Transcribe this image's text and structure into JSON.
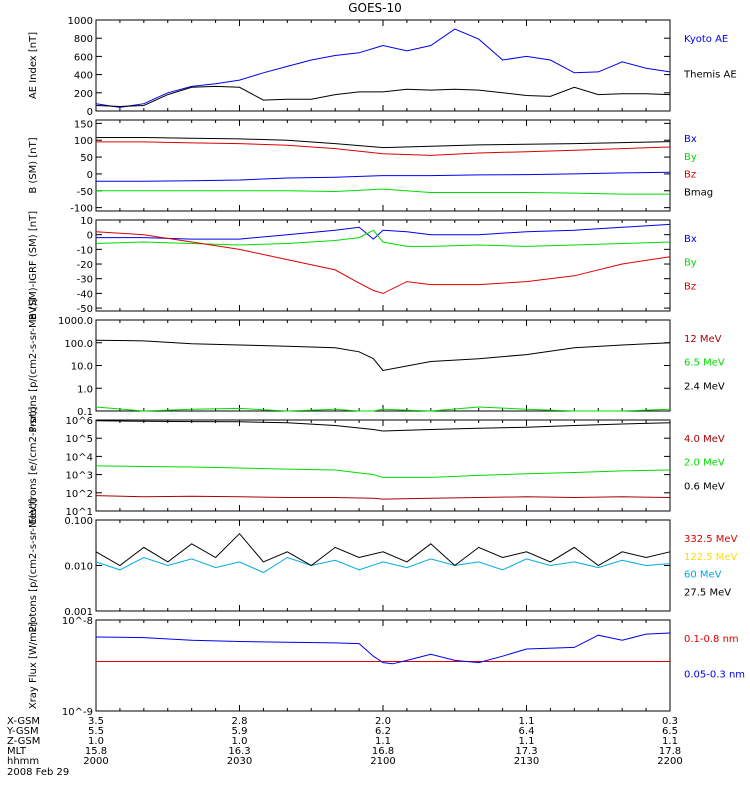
{
  "title": "GOES-10",
  "date_label": "2008 Feb 29",
  "ephemeris": {
    "row_labels": [
      "X-GSM",
      "Y-GSM",
      "Z-GSM",
      "MLT",
      "hhmm"
    ],
    "columns": [
      [
        "3.5",
        "5.5",
        "1.0",
        "15.8",
        "2000"
      ],
      [
        "2.8",
        "5.9",
        "1.0",
        "16.3",
        "2030"
      ],
      [
        "2.0",
        "6.2",
        "1.1",
        "16.8",
        "2100"
      ],
      [
        "1.1",
        "6.4",
        "1.1",
        "17.3",
        "2130"
      ],
      [
        "0.3",
        "6.5",
        "1.1",
        "17.8",
        "2200"
      ]
    ]
  },
  "colors": {
    "black": "#000000",
    "blue": "#0000ee",
    "green": "#00dd00",
    "red": "#dd0000",
    "darkred": "#aa0000",
    "yellow": "#ffdd00",
    "cyan": "#00aadd"
  },
  "chart_data": [
    {
      "type": "line",
      "id": "ae",
      "ylabel": "AE Index [nT]",
      "ylim": [
        0,
        1000
      ],
      "ticks": [
        "0",
        "200",
        "400",
        "600",
        "800",
        "1000"
      ],
      "x_minutes": [
        0,
        5,
        10,
        15,
        20,
        25,
        30,
        35,
        40,
        45,
        50,
        55,
        60,
        65,
        70,
        75,
        80,
        85,
        90,
        95,
        100,
        105,
        110,
        115,
        120
      ],
      "series": [
        {
          "name": "Kyoto AE",
          "color": "blue",
          "values": [
            80,
            40,
            80,
            200,
            270,
            300,
            340,
            420,
            490,
            560,
            610,
            640,
            720,
            660,
            720,
            900,
            790,
            560,
            600,
            560,
            420,
            430,
            540,
            470,
            430
          ]
        },
        {
          "name": "Themis AE",
          "color": "black",
          "values": [
            60,
            50,
            60,
            180,
            260,
            270,
            260,
            120,
            130,
            130,
            180,
            210,
            210,
            240,
            230,
            240,
            230,
            200,
            170,
            160,
            260,
            180,
            190,
            190,
            180
          ]
        }
      ]
    },
    {
      "type": "line",
      "id": "b",
      "ylabel": "B (SM) [nT]",
      "ylim": [
        -110,
        160
      ],
      "ticks": [
        "-100",
        "-50",
        "0",
        "50",
        "100",
        "150"
      ],
      "x_minutes": [
        0,
        10,
        20,
        30,
        40,
        50,
        60,
        70,
        80,
        90,
        100,
        110,
        120
      ],
      "series": [
        {
          "name": "Bx",
          "color": "blue",
          "values": [
            -22,
            -22,
            -20,
            -18,
            -12,
            -10,
            -5,
            -5,
            -3,
            -2,
            0,
            3,
            5
          ]
        },
        {
          "name": "By",
          "color": "green",
          "values": [
            -50,
            -50,
            -50,
            -50,
            -50,
            -52,
            -45,
            -55,
            -55,
            -55,
            -57,
            -60,
            -60
          ]
        },
        {
          "name": "Bz",
          "color": "red",
          "values": [
            95,
            95,
            92,
            90,
            85,
            75,
            60,
            55,
            62,
            66,
            70,
            75,
            80
          ]
        },
        {
          "name": "Bmag",
          "color": "black",
          "values": [
            108,
            108,
            106,
            104,
            100,
            90,
            78,
            82,
            86,
            88,
            90,
            93,
            96
          ]
        }
      ]
    },
    {
      "type": "line",
      "id": "bdiff",
      "ylabel": "B (SM)-IGRF (SM) [nT]",
      "ylim": [
        -52,
        10
      ],
      "ticks": [
        "-50",
        "-40",
        "-30",
        "-20",
        "-10",
        "0",
        "10"
      ],
      "x_minutes": [
        0,
        10,
        20,
        30,
        40,
        50,
        55,
        58,
        60,
        65,
        70,
        80,
        90,
        100,
        110,
        120
      ],
      "series": [
        {
          "name": "Bx",
          "color": "blue",
          "values": [
            -2,
            -2,
            -3,
            -3,
            0,
            3,
            5,
            -3,
            3,
            2,
            0,
            0,
            2,
            3,
            5,
            7
          ]
        },
        {
          "name": "By",
          "color": "green",
          "values": [
            -6,
            -5,
            -6,
            -7,
            -6,
            -4,
            -2,
            3,
            -5,
            -8,
            -8,
            -7,
            -8,
            -7,
            -6,
            -5
          ]
        },
        {
          "name": "Bz",
          "color": "red",
          "values": [
            2,
            0,
            -5,
            -10,
            -17,
            -24,
            -33,
            -38,
            -40,
            -32,
            -34,
            -34,
            -32,
            -28,
            -20,
            -15
          ]
        }
      ]
    },
    {
      "type": "line",
      "id": "protons1",
      "log": true,
      "ylabel": "Protons [p/(cm2-s-sr-MeV)]",
      "ylim_exp": [
        -1,
        3
      ],
      "ticks": [
        "0.1",
        "1.0",
        "10.0",
        "100.0",
        "1000.0"
      ],
      "x_minutes": [
        0,
        10,
        20,
        30,
        40,
        50,
        55,
        58,
        60,
        70,
        80,
        90,
        100,
        110,
        120
      ],
      "series": [
        {
          "name": "12 MeV",
          "color": "darkred",
          "values": [
            null,
            null,
            null,
            null,
            null,
            null,
            null,
            null,
            null,
            null,
            null,
            null,
            null,
            null,
            null
          ]
        },
        {
          "name": "6.5 MeV",
          "color": "green",
          "values": [
            0.15,
            0.1,
            0.12,
            0.13,
            0.1,
            0.12,
            0.1,
            0.1,
            0.12,
            0.1,
            0.15,
            0.12,
            0.1,
            0.1,
            0.12
          ]
        },
        {
          "name": "2.4 MeV",
          "color": "black",
          "values": [
            130,
            120,
            90,
            80,
            70,
            60,
            40,
            20,
            6,
            15,
            20,
            30,
            60,
            80,
            100
          ]
        }
      ]
    },
    {
      "type": "line",
      "id": "electrons",
      "log": true,
      "ylabel": "Electrons [e/(cm2-s-sr)]",
      "ylim_exp": [
        1,
        6
      ],
      "ticks": [
        "10^1",
        "10^2",
        "10^3",
        "10^4",
        "10^5",
        "10^6"
      ],
      "x_minutes": [
        0,
        10,
        20,
        30,
        40,
        50,
        58,
        60,
        70,
        80,
        90,
        100,
        110,
        120
      ],
      "series": [
        {
          "name": "4.0 MeV",
          "color": "darkred",
          "values": [
            70,
            60,
            65,
            60,
            55,
            55,
            50,
            45,
            50,
            55,
            60,
            55,
            60,
            55
          ]
        },
        {
          "name": "2.0 MeV",
          "color": "green",
          "values": [
            3000,
            2800,
            2600,
            2300,
            2000,
            1800,
            1000,
            700,
            700,
            900,
            1100,
            1300,
            1600,
            1800
          ]
        },
        {
          "name": "0.6 MeV",
          "color": "black",
          "values": [
            900000,
            850000,
            820000,
            800000,
            700000,
            500000,
            300000,
            250000,
            300000,
            350000,
            400000,
            500000,
            600000,
            700000
          ]
        }
      ]
    },
    {
      "type": "line",
      "id": "protons2",
      "log": true,
      "ylabel": "Protons [p/(cm2-s-sr-MeV)]",
      "ylim_exp": [
        -3,
        -1
      ],
      "ticks": [
        "0.001",
        "0.010",
        "0.100"
      ],
      "x_minutes": [
        0,
        5,
        10,
        15,
        20,
        25,
        30,
        35,
        40,
        45,
        50,
        55,
        60,
        65,
        70,
        75,
        80,
        85,
        90,
        95,
        100,
        105,
        110,
        115,
        120
      ],
      "series": [
        {
          "name": "332.5 MeV",
          "color": "red",
          "values": [
            null,
            null,
            null,
            null,
            null,
            null,
            null,
            null,
            null,
            null,
            null,
            null,
            null,
            null,
            null,
            null,
            null,
            null,
            null,
            null,
            null,
            null,
            null,
            null,
            null
          ]
        },
        {
          "name": "122.5 MeV",
          "color": "yellow",
          "values": [
            null,
            null,
            null,
            null,
            null,
            null,
            null,
            null,
            null,
            null,
            null,
            null,
            null,
            null,
            null,
            null,
            null,
            null,
            null,
            null,
            null,
            null,
            null,
            null,
            null
          ]
        },
        {
          "name": "60 MeV",
          "color": "cyan",
          "values": [
            0.012,
            0.008,
            0.015,
            0.01,
            0.014,
            0.009,
            0.012,
            0.007,
            0.015,
            0.01,
            0.013,
            0.008,
            0.012,
            0.009,
            0.014,
            0.01,
            0.012,
            0.008,
            0.014,
            0.01,
            0.012,
            0.009,
            0.013,
            0.01,
            0.011
          ]
        },
        {
          "name": "27.5 MeV",
          "color": "black",
          "values": [
            0.02,
            0.01,
            0.025,
            0.012,
            0.03,
            0.015,
            0.05,
            0.012,
            0.02,
            0.01,
            0.025,
            0.015,
            0.02,
            0.012,
            0.03,
            0.01,
            0.025,
            0.015,
            0.02,
            0.012,
            0.025,
            0.01,
            0.02,
            0.015,
            0.02
          ]
        }
      ]
    },
    {
      "type": "line",
      "id": "xray",
      "log": true,
      "ylabel": "Xray Flux [W/m2]",
      "ylim_exp": [
        -9,
        -8
      ],
      "ticks": [
        "10^-9",
        "10^-8"
      ],
      "x_minutes": [
        0,
        10,
        20,
        30,
        40,
        50,
        55,
        58,
        60,
        62,
        65,
        70,
        75,
        80,
        85,
        90,
        100,
        105,
        110,
        115,
        120
      ],
      "series": [
        {
          "name": "0.1-0.8 nm",
          "color": "red",
          "values": [
            3.5e-09,
            3.5e-09,
            3.5e-09,
            3.5e-09,
            3.5e-09,
            3.5e-09,
            3.5e-09,
            3.5e-09,
            3.5e-09,
            3.5e-09,
            3.5e-09,
            3.5e-09,
            3.5e-09,
            3.5e-09,
            3.5e-09,
            3.5e-09,
            3.5e-09,
            3.5e-09,
            3.5e-09,
            3.5e-09,
            3.5e-09
          ]
        },
        {
          "name": "0.05-0.3 nm",
          "color": "blue",
          "values": [
            6.5e-09,
            6.4e-09,
            6e-09,
            5.8e-09,
            5.7e-09,
            5.6e-09,
            5.5e-09,
            4e-09,
            3.4e-09,
            3.3e-09,
            3.6e-09,
            4.2e-09,
            3.6e-09,
            3.4e-09,
            4e-09,
            4.8e-09,
            5e-09,
            6.8e-09,
            6e-09,
            7e-09,
            7.2e-09
          ]
        }
      ]
    }
  ]
}
